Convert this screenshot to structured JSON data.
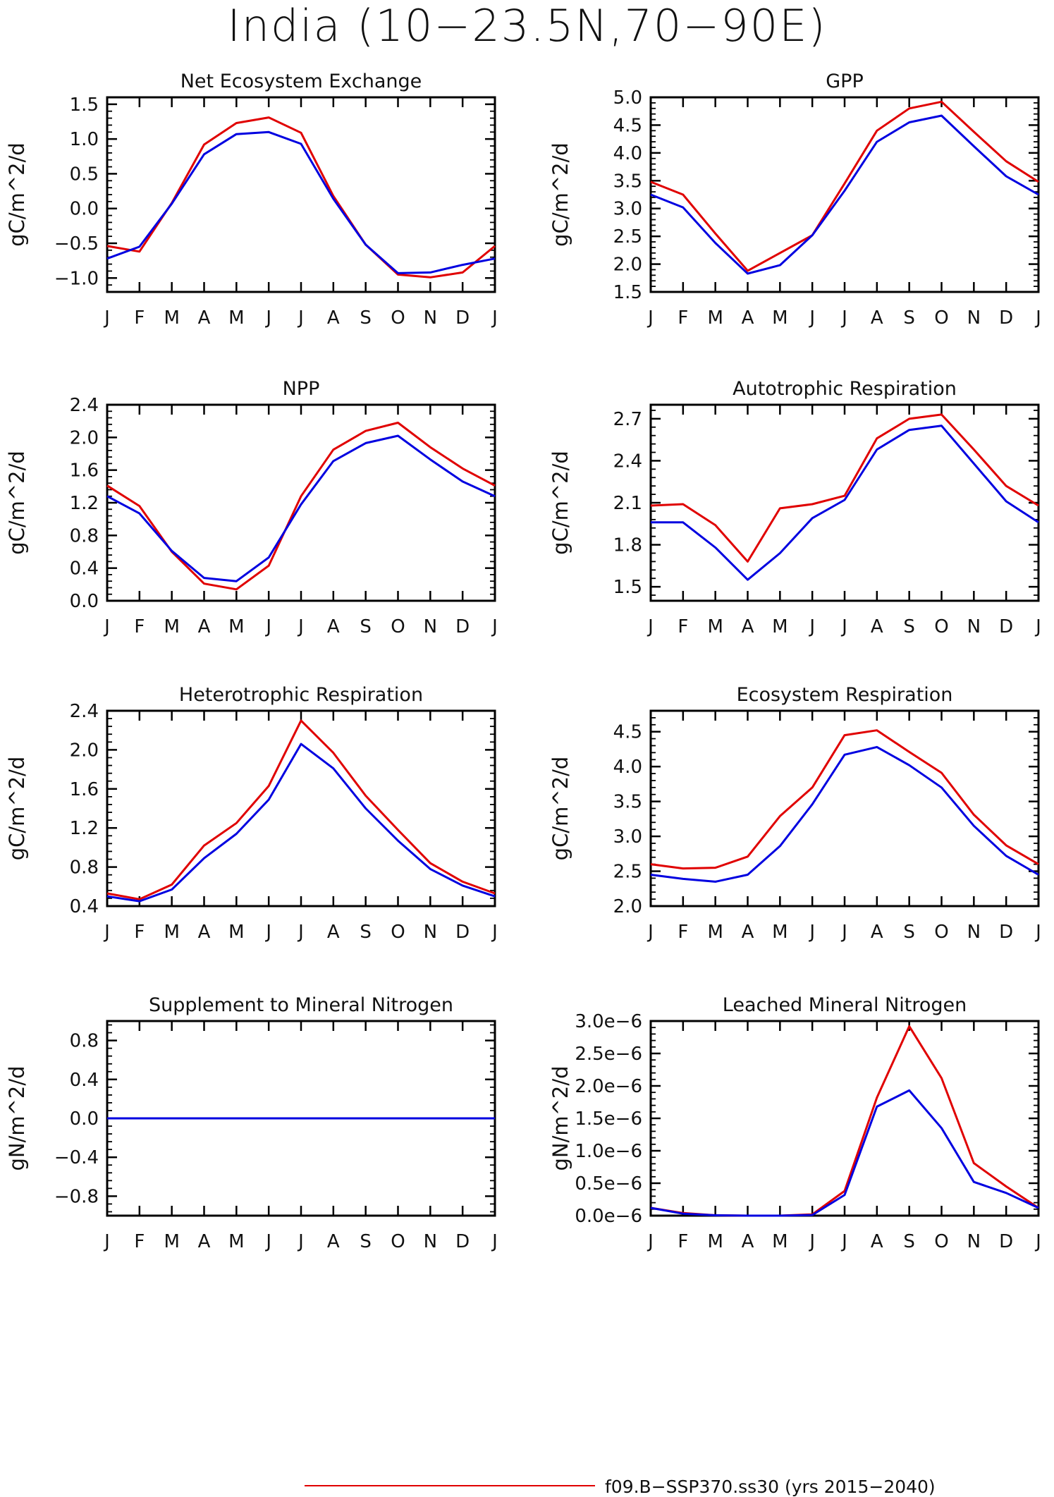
{
  "figure_title": "India (10−23.5N,70−90E)",
  "colors": {
    "series_1": "#e00000",
    "series_2": "#0000e0",
    "axis": "#000000"
  },
  "legend": {
    "series_1_label": "f09.B−SSP370.ss30 (yrs 2015−2040)"
  },
  "chart_data": [
    {
      "type": "line",
      "title": "Net Ecosystem Exchange",
      "ylabel": "gC/m^2/d",
      "categories": [
        "J",
        "F",
        "M",
        "A",
        "M",
        "J",
        "J",
        "A",
        "S",
        "O",
        "N",
        "D",
        "J"
      ],
      "ylim": [
        -1.2,
        1.6
      ],
      "yticks": [
        1.5,
        1.0,
        0.5,
        0.0,
        -0.5,
        -1.0
      ],
      "ytick_labels": [
        "1.5",
        "1.0",
        "0.5",
        "0.0",
        "−0.5",
        "−1.0"
      ],
      "series": [
        {
          "values": [
            -0.54,
            -0.62,
            0.08,
            0.92,
            1.23,
            1.31,
            1.09,
            0.18,
            -0.52,
            -0.95,
            -0.99,
            -0.92,
            -0.54
          ]
        },
        {
          "values": [
            -0.72,
            -0.55,
            0.07,
            0.78,
            1.07,
            1.1,
            0.93,
            0.14,
            -0.52,
            -0.93,
            -0.92,
            -0.81,
            -0.72
          ]
        }
      ]
    },
    {
      "type": "line",
      "title": "GPP",
      "ylabel": "gC/m^2/d",
      "categories": [
        "J",
        "F",
        "M",
        "A",
        "M",
        "J",
        "J",
        "A",
        "S",
        "O",
        "N",
        "D",
        "J"
      ],
      "ylim": [
        1.5,
        5.0
      ],
      "yticks": [
        5.0,
        4.5,
        4.0,
        3.5,
        3.0,
        2.5,
        2.0,
        1.5
      ],
      "ytick_labels": [
        "5.0",
        "4.5",
        "4.0",
        "3.5",
        "3.0",
        "2.5",
        "2.0",
        "1.5"
      ],
      "series": [
        {
          "values": [
            3.48,
            3.25,
            2.55,
            1.88,
            2.2,
            2.52,
            3.45,
            4.4,
            4.8,
            4.92,
            4.38,
            3.85,
            3.48
          ]
        },
        {
          "values": [
            3.25,
            3.02,
            2.38,
            1.83,
            1.98,
            2.52,
            3.32,
            4.2,
            4.55,
            4.67,
            4.12,
            3.58,
            3.25
          ]
        }
      ]
    },
    {
      "type": "line",
      "title": "NPP",
      "ylabel": "gC/m^2/d",
      "categories": [
        "J",
        "F",
        "M",
        "A",
        "M",
        "J",
        "J",
        "A",
        "S",
        "O",
        "N",
        "D",
        "J"
      ],
      "ylim": [
        0.0,
        2.4
      ],
      "yticks": [
        2.4,
        2.0,
        1.6,
        1.2,
        0.8,
        0.4,
        0.0
      ],
      "ytick_labels": [
        "2.4",
        "2.0",
        "1.6",
        "1.2",
        "0.8",
        "0.4",
        "0.0"
      ],
      "series": [
        {
          "values": [
            1.41,
            1.16,
            0.6,
            0.21,
            0.14,
            0.43,
            1.28,
            1.85,
            2.08,
            2.18,
            1.88,
            1.62,
            1.41
          ]
        },
        {
          "values": [
            1.28,
            1.07,
            0.61,
            0.28,
            0.24,
            0.53,
            1.18,
            1.71,
            1.93,
            2.02,
            1.73,
            1.46,
            1.28
          ]
        }
      ]
    },
    {
      "type": "line",
      "title": "Autotrophic Respiration",
      "ylabel": "gC/m^2/d",
      "categories": [
        "J",
        "F",
        "M",
        "A",
        "M",
        "J",
        "J",
        "A",
        "S",
        "O",
        "N",
        "D",
        "J"
      ],
      "ylim": [
        1.4,
        2.8
      ],
      "yticks": [
        2.7,
        2.4,
        2.1,
        1.8,
        1.5
      ],
      "ytick_labels": [
        "2.7",
        "2.4",
        "2.1",
        "1.8",
        "1.5"
      ],
      "series": [
        {
          "values": [
            2.08,
            2.09,
            1.94,
            1.68,
            2.06,
            2.09,
            2.15,
            2.56,
            2.7,
            2.73,
            2.48,
            2.22,
            2.08
          ]
        },
        {
          "values": [
            1.96,
            1.96,
            1.78,
            1.55,
            1.74,
            1.99,
            2.12,
            2.48,
            2.62,
            2.65,
            2.38,
            2.11,
            1.96
          ]
        }
      ]
    },
    {
      "type": "line",
      "title": "Heterotrophic Respiration",
      "ylabel": "gC/m^2/d",
      "categories": [
        "J",
        "F",
        "M",
        "A",
        "M",
        "J",
        "J",
        "A",
        "S",
        "O",
        "N",
        "D",
        "J"
      ],
      "ylim": [
        0.4,
        2.4
      ],
      "yticks": [
        2.4,
        2.0,
        1.6,
        1.2,
        0.8,
        0.4
      ],
      "ytick_labels": [
        "2.4",
        "2.0",
        "1.6",
        "1.2",
        "0.8",
        "0.4"
      ],
      "series": [
        {
          "values": [
            0.53,
            0.47,
            0.62,
            1.02,
            1.25,
            1.63,
            2.3,
            1.97,
            1.53,
            1.18,
            0.84,
            0.65,
            0.53
          ]
        },
        {
          "values": [
            0.5,
            0.45,
            0.57,
            0.89,
            1.14,
            1.49,
            2.06,
            1.81,
            1.4,
            1.07,
            0.78,
            0.61,
            0.5
          ]
        }
      ]
    },
    {
      "type": "line",
      "title": "Ecosystem Respiration",
      "ylabel": "gC/m^2/d",
      "categories": [
        "J",
        "F",
        "M",
        "A",
        "M",
        "J",
        "J",
        "A",
        "S",
        "O",
        "N",
        "D",
        "J"
      ],
      "ylim": [
        2.0,
        4.8
      ],
      "yticks": [
        4.5,
        4.0,
        3.5,
        3.0,
        2.5,
        2.0
      ],
      "ytick_labels": [
        "4.5",
        "4.0",
        "3.5",
        "3.0",
        "2.5",
        "2.0"
      ],
      "series": [
        {
          "values": [
            2.6,
            2.54,
            2.55,
            2.71,
            3.29,
            3.7,
            4.45,
            4.52,
            4.21,
            3.91,
            3.31,
            2.87,
            2.6
          ]
        },
        {
          "values": [
            2.45,
            2.39,
            2.35,
            2.45,
            2.86,
            3.46,
            4.17,
            4.28,
            4.02,
            3.7,
            3.15,
            2.72,
            2.45
          ]
        }
      ]
    },
    {
      "type": "line",
      "title": "Supplement to Mineral Nitrogen",
      "ylabel": "gN/m^2/d",
      "categories": [
        "J",
        "F",
        "M",
        "A",
        "M",
        "J",
        "J",
        "A",
        "S",
        "O",
        "N",
        "D",
        "J"
      ],
      "ylim": [
        -1.0,
        1.0
      ],
      "yticks": [
        0.8,
        0.4,
        0.0,
        -0.4,
        -0.8
      ],
      "ytick_labels": [
        "0.8",
        "0.4",
        "0.0",
        "−0.4",
        "−0.8"
      ],
      "series": [
        {
          "values": [
            0,
            0,
            0,
            0,
            0,
            0,
            0,
            0,
            0,
            0,
            0,
            0,
            0
          ]
        },
        {
          "values": [
            0,
            0,
            0,
            0,
            0,
            0,
            0,
            0,
            0,
            0,
            0,
            0,
            0
          ]
        }
      ]
    },
    {
      "type": "line",
      "title": "Leached Mineral Nitrogen",
      "ylabel": "gN/m^2/d",
      "categories": [
        "J",
        "F",
        "M",
        "A",
        "M",
        "J",
        "J",
        "A",
        "S",
        "O",
        "N",
        "D",
        "J"
      ],
      "ylim": [
        0.0,
        3e-06
      ],
      "yticks": [
        3e-06,
        2.5e-06,
        2e-06,
        1.5e-06,
        1e-06,
        5e-07,
        0.0
      ],
      "ytick_labels": [
        "3.0e−6",
        "2.5e−6",
        "2.0e−6",
        "1.5e−6",
        "1.0e−6",
        "0.5e−6",
        "0.0e−6"
      ],
      "series": [
        {
          "values": [
            1.2e-07,
            4e-08,
            5e-09,
            0,
            0,
            2e-08,
            3.8e-07,
            1.82e-06,
            2.92e-06,
            2.12e-06,
            8.1e-07,
            4.5e-07,
            1.2e-07
          ]
        },
        {
          "values": [
            1.2e-07,
            3e-08,
            5e-09,
            0,
            0,
            1e-08,
            3.2e-07,
            1.68e-06,
            1.93e-06,
            1.35e-06,
            5.2e-07,
            3.5e-07,
            1.2e-07
          ]
        }
      ]
    }
  ]
}
